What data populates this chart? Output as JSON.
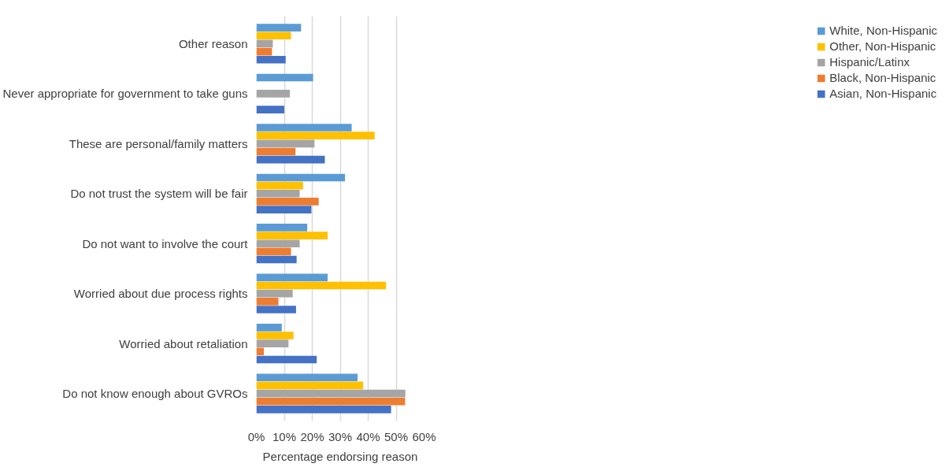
{
  "chart_data": {
    "type": "bar",
    "orientation": "horizontal",
    "xlabel": "Percentage endorsing reason",
    "categories": [
      "Other reason",
      "Never appropriate for government to take guns",
      "These are personal/family matters",
      "Do not trust the system will be fair",
      "Do not want to involve the court",
      "Worried about due process rights",
      "Worried about retaliation",
      "Do not know enough about GVROs"
    ],
    "series": [
      {
        "name": "White, Non-Hispanic",
        "color": "#5b9bd5",
        "values": [
          16.0,
          20.3,
          34.1,
          31.7,
          18.2,
          25.5,
          9.1,
          36.2
        ]
      },
      {
        "name": "Other, Non-Hispanic",
        "color": "#ffc000",
        "values": [
          12.4,
          null,
          42.3,
          16.7,
          25.5,
          46.4,
          13.3,
          38.2
        ]
      },
      {
        "name": "Hispanic/Latinx",
        "color": "#a5a5a5",
        "values": [
          5.9,
          12.0,
          20.8,
          15.5,
          15.5,
          13.0,
          11.5,
          53.3
        ]
      },
      {
        "name": "Black, Non-Hispanic",
        "color": "#ed7d31",
        "values": [
          5.6,
          null,
          14.0,
          22.3,
          12.4,
          7.9,
          2.7,
          53.2
        ]
      },
      {
        "name": "Asian, Non-Hispanic",
        "color": "#4472c4",
        "values": [
          10.5,
          10.0,
          24.5,
          19.7,
          14.4,
          14.2,
          21.6,
          48.2
        ]
      }
    ],
    "xlim": [
      0,
      60
    ],
    "xticks": [
      {
        "value": 0,
        "label": "0%"
      },
      {
        "value": 10,
        "label": "10%"
      },
      {
        "value": 20,
        "label": "20%"
      },
      {
        "value": 30,
        "label": "30%"
      },
      {
        "value": 40,
        "label": "40%"
      },
      {
        "value": 50,
        "label": "50%"
      },
      {
        "value": 60,
        "label": "60%"
      }
    ],
    "grid": "x",
    "legend": "right"
  }
}
